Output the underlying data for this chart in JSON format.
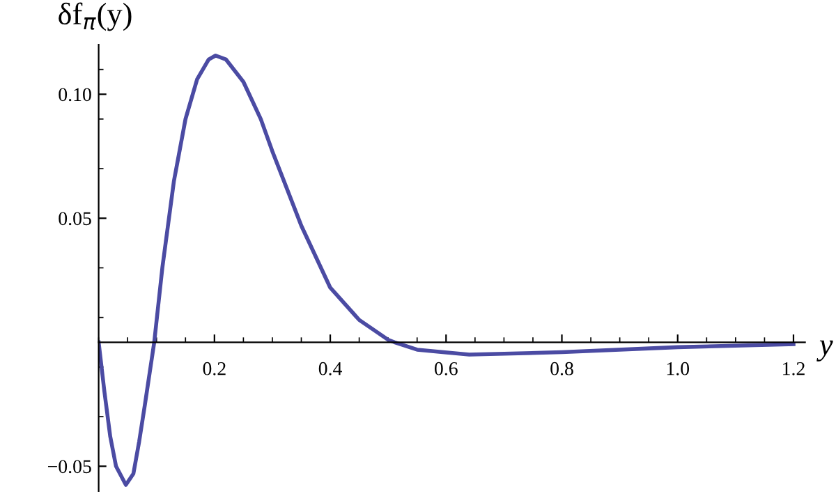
{
  "chart_data": {
    "type": "line",
    "xlabel": "y",
    "ylabel": "δf$_{π}$(y)",
    "x": [
      0,
      0.01,
      0.02,
      0.03,
      0.047,
      0.06,
      0.07,
      0.08,
      0.096,
      0.11,
      0.13,
      0.15,
      0.17,
      0.19,
      0.202,
      0.22,
      0.25,
      0.28,
      0.3,
      0.35,
      0.4,
      0.45,
      0.5,
      0.511,
      0.55,
      0.64,
      0.8,
      1.0,
      1.2
    ],
    "series": [
      {
        "color": "#4b4ba3",
        "values": [
          0,
          -0.02,
          -0.038,
          -0.05,
          -0.0575,
          -0.053,
          -0.04,
          -0.025,
          0,
          0.03,
          0.065,
          0.09,
          0.106,
          0.114,
          0.1156,
          0.114,
          0.105,
          0.09,
          0.077,
          0.047,
          0.022,
          0.009,
          0.001,
          0,
          -0.003,
          -0.005,
          -0.004,
          -0.002,
          -0.0008
        ]
      }
    ],
    "xlim": [
      0,
      1.22
    ],
    "ylim": [
      -0.06,
      0.12
    ],
    "xticks": [
      0.2,
      0.4,
      0.6,
      0.8,
      {
        "value": 1.0,
        "label": "1.0"
      },
      1.2
    ],
    "yticks": [
      {
        "value": -0.05,
        "label": "−0.05"
      },
      0.05,
      {
        "value": 0.1,
        "label": "0.10"
      }
    ],
    "grid": false,
    "legend": false,
    "marker": "none",
    "line_style": "solid"
  }
}
